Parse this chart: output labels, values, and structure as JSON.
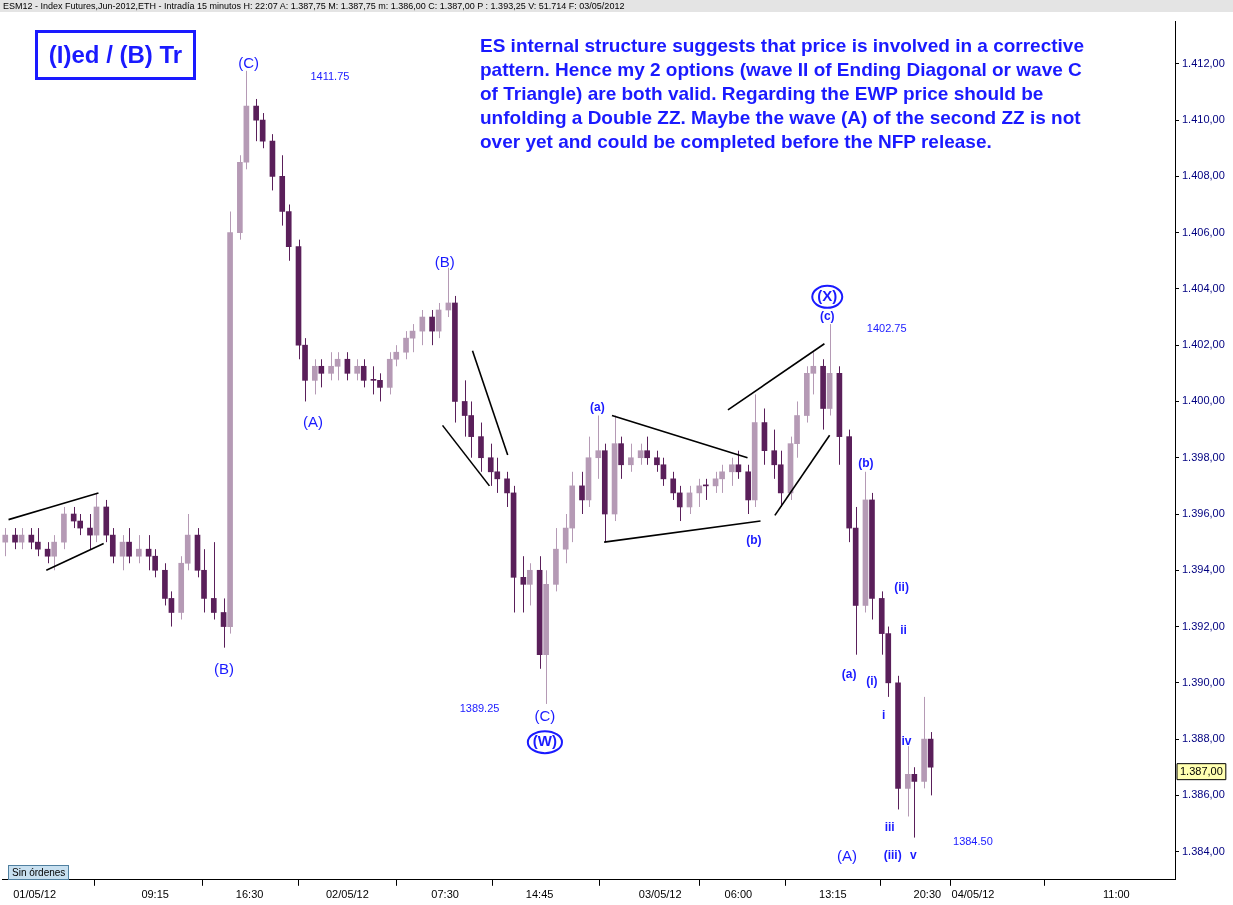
{
  "chart_data": {
    "type": "candlestick",
    "title": "(I)ed / (B) Tr",
    "subtitle": "ESM12 - Index Futures,Jun-2012,ETH - Intradía 15 minutos H: 22:07 A: 1.387,75 M: 1.387,75 m: 1.386,00 C: 1.387,00 P : 1.393,25 V: 51.714 F: 03/05/2012",
    "colors": [
      "#b59ab5",
      "#5a1f5a",
      "#b59ab5",
      "#5a1f5a",
      "#5a1f5a",
      "#5a1f5a",
      "#b59ab5",
      "#b59ab5",
      "#5a1f5a",
      "#5a1f5a",
      "#5a1f5a",
      "#b59ab5",
      "#5a1f5a",
      "#5a1f5a",
      "#b59ab5",
      "#5a1f5a",
      "#b59ab5",
      "#5a1f5a",
      "#5a1f5a",
      "#5a1f5a",
      "#5a1f5a",
      "#b59ab5",
      "#b59ab5",
      "#5a1f5a",
      "#5a1f5a",
      "#5a1f5a",
      "#5a1f5a",
      "#b59ab5",
      "#b59ab5",
      "#b59ab5",
      "#5a1f5a",
      "#5a1f5a",
      "#5a1f5a",
      "#5a1f5a",
      "#5a1f5a",
      "#5a1f5a",
      "#5a1f5a",
      "#b59ab5",
      "#5a1f5a",
      "#b59ab5",
      "#b59ab5",
      "#5a1f5a",
      "#b59ab5",
      "#5a1f5a",
      "#5a1f5a",
      "#5a1f5a",
      "#b59ab5",
      "#b59ab5",
      "#b59ab5",
      "#b59ab5",
      "#b59ab5",
      "#5a1f5a",
      "#b59ab5",
      "#b59ab5",
      "#5a1f5a",
      "#5a1f5a",
      "#5a1f5a",
      "#5a1f5a",
      "#5a1f5a",
      "#5a1f5a",
      "#5a1f5a",
      "#5a1f5a",
      "#5a1f5a",
      "#b59ab5",
      "#5a1f5a",
      "#b59ab5",
      "#b59ab5",
      "#b59ab5",
      "#b59ab5",
      "#5a1f5a",
      "#b59ab5",
      "#b59ab5",
      "#5a1f5a",
      "#b59ab5",
      "#5a1f5a",
      "#b59ab5",
      "#b59ab5",
      "#5a1f5a",
      "#5a1f5a",
      "#5a1f5a",
      "#5a1f5a",
      "#5a1f5a",
      "#b59ab5",
      "#b59ab5",
      "#5a1f5a",
      "#b59ab5",
      "#b59ab5",
      "#b59ab5",
      "#5a1f5a",
      "#5a1f5a",
      "#b59ab5",
      "#5a1f5a",
      "#5a1f5a",
      "#5a1f5a",
      "#b59ab5",
      "#b59ab5",
      "#b59ab5",
      "#b59ab5",
      "#5a1f5a",
      "#b59ab5",
      "#5a1f5a",
      "#5a1f5a",
      "#5a1f5a",
      "#b59ab5",
      "#5a1f5a",
      "#5a1f5a",
      "#5a1f5a",
      "#5a1f5a",
      "#b59ab5",
      "#5a1f5a",
      "#b59ab5",
      "#5a1f5a"
    ],
    "x": [
      "2012-04-30T21:45",
      "2012-04-30T22:30",
      "2012-04-30T23:00",
      "2012-04-30T23:45",
      "2012-05-01T00:15",
      "2012-05-01T01:00",
      "2012-05-01T01:30",
      "2012-05-01T02:15",
      "2012-05-01T03:00",
      "2012-05-01T03:30",
      "2012-05-01T04:15",
      "2012-05-01T04:45",
      "2012-05-01T05:30",
      "2012-05-01T06:00",
      "2012-05-01T06:45",
      "2012-05-01T07:15",
      "2012-05-01T08:00",
      "2012-05-01T08:45",
      "2012-05-01T09:15",
      "2012-05-01T10:00",
      "2012-05-01T10:30",
      "2012-05-01T11:15",
      "2012-05-01T11:45",
      "2012-05-01T12:30",
      "2012-05-01T13:00",
      "2012-05-01T13:45",
      "2012-05-01T14:30",
      "2012-05-01T15:00",
      "2012-05-01T15:45",
      "2012-05-01T16:15",
      "2012-05-01T17:00",
      "2012-05-01T17:30",
      "2012-05-01T18:15",
      "2012-05-01T19:00",
      "2012-05-01T19:30",
      "2012-05-01T20:15",
      "2012-05-01T20:45",
      "2012-05-01T21:30",
      "2012-05-01T22:00",
      "2012-05-01T22:45",
      "2012-05-01T23:15",
      "2012-05-02T00:00",
      "2012-05-02T00:45",
      "2012-05-02T01:15",
      "2012-05-02T02:00",
      "2012-05-02T02:30",
      "2012-05-02T03:15",
      "2012-05-02T03:45",
      "2012-05-02T04:30",
      "2012-05-02T05:00",
      "2012-05-02T05:45",
      "2012-05-02T06:30",
      "2012-05-02T07:00",
      "2012-05-02T07:45",
      "2012-05-02T08:15",
      "2012-05-02T09:00",
      "2012-05-02T09:30",
      "2012-05-02T10:15",
      "2012-05-02T11:00",
      "2012-05-02T11:30",
      "2012-05-02T12:15",
      "2012-05-02T12:45",
      "2012-05-02T13:30",
      "2012-05-02T14:00",
      "2012-05-02T14:45",
      "2012-05-02T15:15",
      "2012-05-02T16:00",
      "2012-05-02T16:45",
      "2012-05-02T17:15",
      "2012-05-02T18:00",
      "2012-05-02T18:30",
      "2012-05-02T19:15",
      "2012-05-02T19:45",
      "2012-05-02T20:30",
      "2012-05-02T21:00",
      "2012-05-02T21:45",
      "2012-05-02T22:30",
      "2012-05-02T23:00",
      "2012-05-02T23:45",
      "2012-05-03T00:15",
      "2012-05-03T01:00",
      "2012-05-03T01:30",
      "2012-05-03T02:15",
      "2012-05-03T03:00",
      "2012-05-03T03:30",
      "2012-05-03T04:15",
      "2012-05-03T04:45",
      "2012-05-03T05:30",
      "2012-05-03T06:00",
      "2012-05-03T06:45",
      "2012-05-03T07:15",
      "2012-05-03T08:00",
      "2012-05-03T08:45",
      "2012-05-03T09:15",
      "2012-05-03T10:00",
      "2012-05-03T10:30",
      "2012-05-03T11:15",
      "2012-05-03T11:45",
      "2012-05-03T12:30",
      "2012-05-03T13:00",
      "2012-05-03T13:45",
      "2012-05-03T14:30",
      "2012-05-03T15:00",
      "2012-05-03T15:45",
      "2012-05-03T16:15",
      "2012-05-03T17:00",
      "2012-05-03T17:30",
      "2012-05-03T18:15",
      "2012-05-03T19:00",
      "2012-05-03T19:30",
      "2012-05-03T20:15",
      "2012-05-03T20:45"
    ],
    "ohlc": [
      [
        1395.0,
        1395.5,
        1394.5,
        1395.25
      ],
      [
        1395.25,
        1395.5,
        1394.75,
        1395.0
      ],
      [
        1395.0,
        1395.5,
        1394.75,
        1395.25
      ],
      [
        1395.25,
        1395.5,
        1394.75,
        1395.0
      ],
      [
        1395.0,
        1395.5,
        1394.5,
        1394.75
      ],
      [
        1394.75,
        1395.0,
        1394.25,
        1394.5
      ],
      [
        1394.5,
        1395.25,
        1394.0,
        1395.0
      ],
      [
        1395.0,
        1396.25,
        1394.75,
        1396.0
      ],
      [
        1396.0,
        1396.25,
        1395.5,
        1395.75
      ],
      [
        1395.75,
        1396.0,
        1395.25,
        1395.5
      ],
      [
        1395.5,
        1396.0,
        1394.75,
        1395.25
      ],
      [
        1395.25,
        1396.75,
        1395.0,
        1396.25
      ],
      [
        1396.25,
        1396.5,
        1395.0,
        1395.25
      ],
      [
        1395.25,
        1395.5,
        1394.25,
        1394.5
      ],
      [
        1394.5,
        1395.25,
        1394.0,
        1395.0
      ],
      [
        1395.0,
        1395.5,
        1394.25,
        1394.5
      ],
      [
        1394.5,
        1395.25,
        1394.25,
        1394.75
      ],
      [
        1394.75,
        1395.25,
        1394.0,
        1394.5
      ],
      [
        1394.5,
        1394.75,
        1393.75,
        1394.0
      ],
      [
        1394.0,
        1394.25,
        1392.75,
        1393.0
      ],
      [
        1393.0,
        1393.25,
        1392.0,
        1392.5
      ],
      [
        1392.5,
        1394.5,
        1392.25,
        1394.25
      ],
      [
        1394.25,
        1396.0,
        1394.0,
        1395.25
      ],
      [
        1395.25,
        1395.5,
        1393.75,
        1394.0
      ],
      [
        1394.0,
        1394.75,
        1392.5,
        1393.0
      ],
      [
        1393.0,
        1395.0,
        1392.25,
        1392.5
      ],
      [
        1392.5,
        1393.0,
        1391.25,
        1392.0
      ],
      [
        1392.0,
        1406.75,
        1391.75,
        1406.0
      ],
      [
        1406.0,
        1408.75,
        1405.75,
        1408.5
      ],
      [
        1408.5,
        1411.75,
        1408.25,
        1410.5
      ],
      [
        1410.5,
        1410.75,
        1409.25,
        1410.0
      ],
      [
        1410.0,
        1410.25,
        1409.0,
        1409.25
      ],
      [
        1409.25,
        1409.5,
        1407.5,
        1408.0
      ],
      [
        1408.0,
        1408.75,
        1406.25,
        1406.75
      ],
      [
        1406.75,
        1407.0,
        1405.0,
        1405.5
      ],
      [
        1405.5,
        1405.75,
        1401.5,
        1402.0
      ],
      [
        1402.0,
        1402.25,
        1400.0,
        1400.75
      ],
      [
        1400.75,
        1401.5,
        1400.25,
        1401.25
      ],
      [
        1401.25,
        1401.5,
        1400.5,
        1401.0
      ],
      [
        1401.0,
        1401.75,
        1400.75,
        1401.25
      ],
      [
        1401.25,
        1401.75,
        1400.75,
        1401.5
      ],
      [
        1401.5,
        1401.75,
        1400.75,
        1401.0
      ],
      [
        1401.0,
        1401.5,
        1400.75,
        1401.25
      ],
      [
        1401.25,
        1401.5,
        1400.5,
        1400.75
      ],
      [
        1400.75,
        1401.25,
        1400.25,
        1400.75
      ],
      [
        1400.75,
        1401.0,
        1400.0,
        1400.5
      ],
      [
        1400.5,
        1401.75,
        1400.25,
        1401.5
      ],
      [
        1401.5,
        1402.0,
        1401.25,
        1401.75
      ],
      [
        1401.75,
        1402.5,
        1401.5,
        1402.25
      ],
      [
        1402.25,
        1402.75,
        1401.75,
        1402.5
      ],
      [
        1402.5,
        1403.25,
        1402.0,
        1403.0
      ],
      [
        1403.0,
        1403.25,
        1402.0,
        1402.5
      ],
      [
        1402.5,
        1403.5,
        1402.25,
        1403.25
      ],
      [
        1403.25,
        1404.75,
        1403.0,
        1403.5
      ],
      [
        1403.5,
        1403.75,
        1399.25,
        1400.0
      ],
      [
        1400.0,
        1400.75,
        1398.75,
        1399.5
      ],
      [
        1399.5,
        1400.0,
        1398.0,
        1398.75
      ],
      [
        1398.75,
        1399.25,
        1397.5,
        1398.0
      ],
      [
        1398.0,
        1398.5,
        1397.0,
        1397.5
      ],
      [
        1397.5,
        1398.0,
        1396.75,
        1397.25
      ],
      [
        1397.25,
        1397.5,
        1396.25,
        1396.75
      ],
      [
        1396.75,
        1397.0,
        1392.5,
        1393.75
      ],
      [
        1393.75,
        1394.5,
        1392.5,
        1393.5
      ],
      [
        1393.5,
        1394.25,
        1392.75,
        1394.0
      ],
      [
        1394.0,
        1394.5,
        1390.5,
        1391.0
      ],
      [
        1391.0,
        1394.0,
        1389.25,
        1393.5
      ],
      [
        1393.5,
        1395.5,
        1393.25,
        1394.75
      ],
      [
        1394.75,
        1396.0,
        1394.25,
        1395.5
      ],
      [
        1395.5,
        1397.5,
        1395.0,
        1397.0
      ],
      [
        1397.0,
        1397.5,
        1396.0,
        1396.5
      ],
      [
        1396.5,
        1398.75,
        1396.25,
        1398.0
      ],
      [
        1398.0,
        1399.5,
        1397.25,
        1398.25
      ],
      [
        1398.25,
        1398.5,
        1395.0,
        1396.0
      ],
      [
        1396.0,
        1399.5,
        1395.75,
        1398.5
      ],
      [
        1398.5,
        1398.75,
        1397.25,
        1397.75
      ],
      [
        1397.75,
        1398.5,
        1397.5,
        1398.0
      ],
      [
        1398.0,
        1398.5,
        1397.75,
        1398.25
      ],
      [
        1398.25,
        1398.75,
        1397.75,
        1398.0
      ],
      [
        1398.0,
        1398.25,
        1397.5,
        1397.75
      ],
      [
        1397.75,
        1398.0,
        1397.0,
        1397.25
      ],
      [
        1397.25,
        1397.5,
        1396.5,
        1396.75
      ],
      [
        1396.75,
        1397.0,
        1395.75,
        1396.25
      ],
      [
        1396.25,
        1397.0,
        1396.0,
        1396.75
      ],
      [
        1396.75,
        1397.25,
        1396.25,
        1397.0
      ],
      [
        1397.0,
        1397.25,
        1396.5,
        1397.0
      ],
      [
        1397.0,
        1397.5,
        1396.75,
        1397.25
      ],
      [
        1397.25,
        1397.75,
        1396.75,
        1397.5
      ],
      [
        1397.5,
        1398.0,
        1397.0,
        1397.75
      ],
      [
        1397.75,
        1398.25,
        1397.25,
        1397.5
      ],
      [
        1397.5,
        1397.75,
        1396.0,
        1396.5
      ],
      [
        1396.5,
        1400.25,
        1396.25,
        1399.25
      ],
      [
        1399.25,
        1399.75,
        1397.75,
        1398.25
      ],
      [
        1398.25,
        1399.0,
        1397.25,
        1397.75
      ],
      [
        1397.75,
        1398.25,
        1396.25,
        1396.75
      ],
      [
        1396.75,
        1398.75,
        1396.5,
        1398.5
      ],
      [
        1398.5,
        1400.0,
        1398.0,
        1399.5
      ],
      [
        1399.5,
        1401.25,
        1399.25,
        1401.0
      ],
      [
        1401.0,
        1401.75,
        1400.25,
        1401.25
      ],
      [
        1401.25,
        1401.5,
        1399.0,
        1399.75
      ],
      [
        1399.75,
        1402.75,
        1399.5,
        1401.0
      ],
      [
        1401.0,
        1401.25,
        1397.75,
        1398.75
      ],
      [
        1398.75,
        1399.0,
        1395.0,
        1395.5
      ],
      [
        1395.5,
        1396.25,
        1391.0,
        1392.75
      ],
      [
        1392.75,
        1397.5,
        1392.5,
        1396.5
      ],
      [
        1396.5,
        1396.75,
        1392.25,
        1393.0
      ],
      [
        1393.0,
        1393.25,
        1391.0,
        1391.75
      ],
      [
        1391.75,
        1392.0,
        1389.5,
        1390.0
      ],
      [
        1390.0,
        1390.25,
        1385.5,
        1386.25
      ],
      [
        1386.25,
        1387.75,
        1385.25,
        1386.75
      ],
      [
        1386.75,
        1387.0,
        1384.5,
        1386.5
      ],
      [
        1386.5,
        1389.5,
        1386.25,
        1388.0
      ],
      [
        1388.0,
        1388.25,
        1386.0,
        1387.0
      ]
    ],
    "series": [
      {
        "type": "line",
        "color": "#000000",
        "x": [
          "2012-04-30T22:00",
          "2012-05-01T04:54"
        ],
        "values": [
          1395.8,
          1396.75
        ]
      },
      {
        "type": "line",
        "color": "#000000",
        "x": [
          "2012-05-01T00:54",
          "2012-05-01T05:18"
        ],
        "values": [
          1394.0,
          1394.95
        ]
      },
      {
        "type": "line",
        "color": "#000000",
        "x": [
          "2012-05-02T07:18",
          "2012-05-02T10:54"
        ],
        "values": [
          1399.15,
          1397.0
        ]
      },
      {
        "type": "line",
        "color": "#000000",
        "x": [
          "2012-05-02T09:36",
          "2012-05-02T12:18"
        ],
        "values": [
          1401.8,
          1398.1
        ]
      },
      {
        "type": "line",
        "color": "#000000",
        "x": [
          "2012-05-02T20:18",
          "2012-05-03T06:42"
        ],
        "values": [
          1399.5,
          1398.0
        ]
      },
      {
        "type": "line",
        "color": "#000000",
        "x": [
          "2012-05-02T19:42",
          "2012-05-03T07:42"
        ],
        "values": [
          1395.0,
          1395.75
        ]
      },
      {
        "type": "line",
        "color": "#000000",
        "x": [
          "2012-05-03T05:12",
          "2012-05-03T12:36"
        ],
        "values": [
          1399.7,
          1402.05
        ]
      },
      {
        "type": "line",
        "color": "#000000",
        "x": [
          "2012-05-03T08:48",
          "2012-05-03T13:00"
        ],
        "values": [
          1395.95,
          1398.8
        ]
      }
    ],
    "xlim": [
      "2012-04-30T21:30",
      "2012-05-04T15:30"
    ],
    "ylim": [
      1383,
      1413.5
    ],
    "xticks": [
      {
        "value": "2012-05-01T00:00",
        "label": "01/05/12"
      },
      {
        "value": "2012-05-01T09:15",
        "label": "09:15"
      },
      {
        "value": "2012-05-01T16:30",
        "label": "16:30"
      },
      {
        "value": "2012-05-02T00:00",
        "label": "02/05/12"
      },
      {
        "value": "2012-05-02T07:30",
        "label": "07:30"
      },
      {
        "value": "2012-05-02T14:45",
        "label": "14:45"
      },
      {
        "value": "2012-05-03T00:00",
        "label": "03/05/12"
      },
      {
        "value": "2012-05-03T06:00",
        "label": "06:00"
      },
      {
        "value": "2012-05-03T13:15",
        "label": "13:15"
      },
      {
        "value": "2012-05-03T20:30",
        "label": "20:30"
      },
      {
        "value": "2012-05-04T00:00",
        "label": "04/05/12"
      },
      {
        "value": "2012-05-04T11:00",
        "label": "11:00"
      }
    ],
    "yticks": [
      {
        "value": 1384,
        "label": "1.384,00"
      },
      {
        "value": 1386,
        "label": "1.386,00"
      },
      {
        "value": 1388,
        "label": "1.388,00"
      },
      {
        "value": 1390,
        "label": "1.390,00"
      },
      {
        "value": 1392,
        "label": "1.392,00"
      },
      {
        "value": 1394,
        "label": "1.394,00"
      },
      {
        "value": 1396,
        "label": "1.396,00"
      },
      {
        "value": 1398,
        "label": "1.398,00"
      },
      {
        "value": 1400,
        "label": "1.400,00"
      },
      {
        "value": 1402,
        "label": "1.402,00"
      },
      {
        "value": 1404,
        "label": "1.404,00"
      },
      {
        "value": 1406,
        "label": "1.406,00"
      },
      {
        "value": 1408,
        "label": "1.408,00"
      },
      {
        "value": 1410,
        "label": "1.410,00"
      },
      {
        "value": 1412,
        "label": "1.412,00"
      }
    ],
    "grid": false,
    "legend": false,
    "annotations": [
      "ES internal structure suggests that price is involved in a corrective pattern. Hence my 2 options (wave II of Ending Diagonal or wave C of Triangle) are both valid. Regarding the EWP price should be unfolding a Double ZZ. Maybe the wave (A) of the second ZZ is not over yet and could be completed before the NFP release.",
      "Sin órdenes",
      "(C)",
      "1411.75",
      "(A)",
      "(B)",
      "(B)",
      "1389.25",
      "(C)",
      "(W)",
      "(a)",
      "(b)",
      "(X)",
      "(c)",
      "1402.75",
      "(b)",
      "(a)",
      "(ii)",
      "(i)",
      "ii",
      "i",
      "iv",
      "iii",
      "(iii)",
      "v",
      "(A)",
      "1384.50",
      "1.387,00"
    ]
  }
}
